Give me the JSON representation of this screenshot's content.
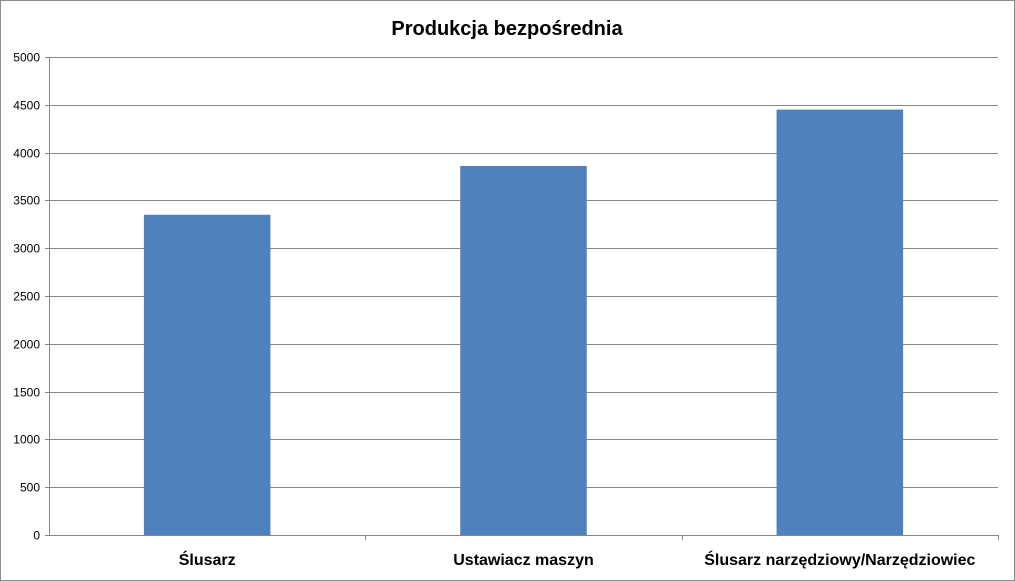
{
  "chart_data": {
    "type": "bar",
    "title": "Produkcja bezpośrednia",
    "xlabel": "",
    "ylabel": "",
    "categories": [
      "Ślusarz",
      "Ustawiacz maszyn",
      "Ślusarz narzędziowy/Narzędziowiec"
    ],
    "values": [
      3350,
      3860,
      4450
    ],
    "ylim": [
      0,
      5000
    ],
    "yticks": [
      0,
      500,
      1000,
      1500,
      2000,
      2500,
      3000,
      3500,
      4000,
      4500,
      5000
    ],
    "ytick_labels": [
      "0",
      "500",
      "1000",
      "1500",
      "2000",
      "2500",
      "3000",
      "3500",
      "4000",
      "4500",
      "5000"
    ],
    "grid": true,
    "legend": "none",
    "bar_color": "#4f81bd",
    "grid_color": "#868686"
  }
}
